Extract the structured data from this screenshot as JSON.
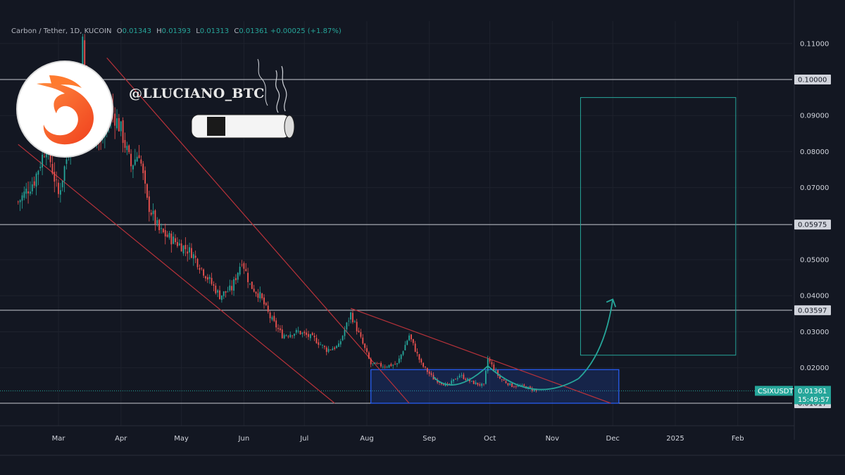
{
  "header": {
    "symbol": "Carbon / Tether, 1D, KUCOIN",
    "o_label": "O",
    "o_value": "0.01343",
    "h_label": "H",
    "h_value": "0.01393",
    "l_label": "L",
    "l_value": "0.01313",
    "c_label": "C",
    "c_value": "0.01361",
    "change": "+0.00025 (+1.87%)"
  },
  "watermark": {
    "handle": "@LLUCIANO_BTC"
  },
  "colors": {
    "background": "#131722",
    "up": "#26a69a",
    "down": "#ef5350",
    "channel": "#b8323a",
    "target_box": "#26a69a",
    "range_box": "#2962ff"
  },
  "chart_data": {
    "type": "candlestick",
    "x_ticks": [
      "Mar",
      "Apr",
      "May",
      "Jun",
      "Jul",
      "Aug",
      "Sep",
      "Oct",
      "Nov",
      "Dec",
      "2025",
      "Feb"
    ],
    "y_ticks": [
      "0.11000",
      "0.09000",
      "0.08000",
      "0.07000",
      "0.05000",
      "0.04000",
      "0.03000",
      "0.02000"
    ],
    "ylim": [
      0.008,
      0.116
    ],
    "horizontal_levels": [
      {
        "value": 0.1,
        "label": "0.10000"
      },
      {
        "value": 0.05975,
        "label": "0.05975"
      },
      {
        "value": 0.03597,
        "label": "0.03597"
      },
      {
        "value": 0.01017,
        "label": "0.01017"
      }
    ],
    "last_price": {
      "ticker": "CSIXUSDT",
      "value": "0.01361",
      "countdown": "15:49:57"
    },
    "series_close_path": [
      [
        "2024-02-10",
        0.066
      ],
      [
        "2024-02-18",
        0.072
      ],
      [
        "2024-02-24",
        0.082
      ],
      [
        "2024-03-01",
        0.068
      ],
      [
        "2024-03-05",
        0.078
      ],
      [
        "2024-03-10",
        0.095
      ],
      [
        "2024-03-13",
        0.11
      ],
      [
        "2024-03-16",
        0.09
      ],
      [
        "2024-03-22",
        0.082
      ],
      [
        "2024-03-27",
        0.092
      ],
      [
        "2024-04-01",
        0.086
      ],
      [
        "2024-04-06",
        0.076
      ],
      [
        "2024-04-10",
        0.08
      ],
      [
        "2024-04-14",
        0.066
      ],
      [
        "2024-04-20",
        0.058
      ],
      [
        "2024-04-28",
        0.055
      ],
      [
        "2024-05-06",
        0.052
      ],
      [
        "2024-05-14",
        0.045
      ],
      [
        "2024-05-20",
        0.04
      ],
      [
        "2024-05-26",
        0.042
      ],
      [
        "2024-05-31",
        0.05
      ],
      [
        "2024-06-04",
        0.043
      ],
      [
        "2024-06-09",
        0.04
      ],
      [
        "2024-06-14",
        0.034
      ],
      [
        "2024-06-20",
        0.029
      ],
      [
        "2024-06-28",
        0.03
      ],
      [
        "2024-07-06",
        0.028
      ],
      [
        "2024-07-12",
        0.025
      ],
      [
        "2024-07-18",
        0.026
      ],
      [
        "2024-07-24",
        0.035
      ],
      [
        "2024-07-29",
        0.028
      ],
      [
        "2024-08-03",
        0.021
      ],
      [
        "2024-08-10",
        0.0205
      ],
      [
        "2024-08-16",
        0.021
      ],
      [
        "2024-08-22",
        0.029
      ],
      [
        "2024-08-28",
        0.021
      ],
      [
        "2024-09-03",
        0.017
      ],
      [
        "2024-09-10",
        0.015
      ],
      [
        "2024-09-16",
        0.018
      ],
      [
        "2024-09-22",
        0.016
      ],
      [
        "2024-09-28",
        0.015
      ],
      [
        "2024-09-30",
        0.0225
      ],
      [
        "2024-10-06",
        0.017
      ],
      [
        "2024-10-12",
        0.015
      ],
      [
        "2024-10-18",
        0.0148
      ],
      [
        "2024-10-24",
        0.01361
      ]
    ],
    "annotations": {
      "descending_channel_upper": [
        [
          "2024-03-25",
          0.106
        ],
        [
          "2024-08-22",
          0.01017
        ]
      ],
      "descending_channel_lower": [
        [
          "2024-02-10",
          0.082
        ],
        [
          "2024-07-16",
          0.01017
        ]
      ],
      "descending_trendline": [
        [
          "2024-07-24",
          0.0365
        ],
        [
          "2024-11-30",
          0.01017
        ]
      ],
      "accumulation_box": {
        "x": [
          "2024-08-03",
          "2024-12-04"
        ],
        "y": [
          0.01017,
          0.0195
        ]
      },
      "target_box": {
        "x": [
          "2024-11-15",
          "2025-01-31"
        ],
        "y": [
          0.0235,
          0.095
        ]
      },
      "arrow_target_value": 0.039
    }
  }
}
